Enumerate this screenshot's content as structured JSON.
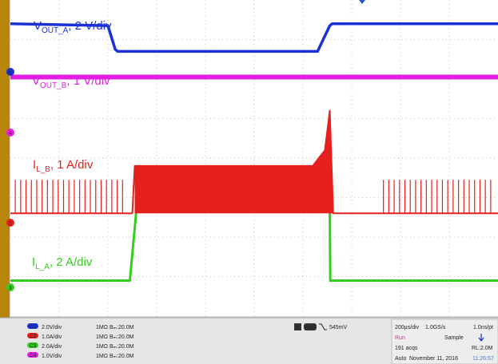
{
  "colors": {
    "ch1": "#1a31d6",
    "ch2": "#e6201f",
    "ch3": "#33cc1f",
    "ch4": "#e21ee2",
    "bezel": "#b8860b",
    "screen": "#ffffff",
    "grid": "#b0b0b0",
    "panel": "#e6e6e6",
    "run": "#cc3399"
  },
  "chart_data": {
    "type": "line",
    "x_unit": "div",
    "xlim": [
      0,
      10
    ],
    "ylim": [
      0,
      8
    ],
    "series": [
      {
        "name": "V_OUT_A",
        "label_base": "V",
        "label_sub": "OUT_A",
        "label_suffix": ", 2 V/div",
        "color": "#1a31d6",
        "x": [
          0,
          2.0,
          2.15,
          2.2,
          6.3,
          6.55,
          6.6,
          10
        ],
        "y": [
          7.4,
          7.35,
          6.75,
          6.7,
          6.7,
          7.35,
          7.4,
          7.4
        ]
      },
      {
        "name": "V_OUT_B",
        "label_base": "V",
        "label_sub": "OUT_B",
        "label_suffix": ", 1 V/div",
        "color": "#e21ee2",
        "x": [
          0,
          10
        ],
        "y": [
          6.05,
          6.05
        ]
      },
      {
        "name": "I_L_B",
        "label_base": "I",
        "label_sub": "L_B",
        "label_suffix": ", 1 A/div",
        "color": "#e6201f",
        "x": [
          0,
          2.5,
          2.55,
          6.2,
          6.45,
          6.55,
          6.62,
          7.7,
          10
        ],
        "y": [
          2.6,
          2.6,
          3.8,
          3.8,
          4.2,
          5.2,
          2.6,
          2.6,
          2.6
        ],
        "pulse_regions_div": [
          [
            0.1,
            2.4
          ],
          [
            7.65,
            9.9
          ]
        ],
        "pulse_height_div": 0.85
      },
      {
        "name": "I_L_A",
        "label_base": "I",
        "label_sub": "L_A",
        "label_suffix": ", 2 A/div",
        "color": "#33cc1f",
        "x": [
          0,
          2.45,
          2.6,
          6.55,
          6.56,
          10
        ],
        "y": [
          0.9,
          0.9,
          2.9,
          2.9,
          0.9,
          0.9
        ]
      }
    ]
  },
  "markers": {
    "ch1": "1",
    "ch4": "4",
    "ch2": "2",
    "ch3": "3"
  },
  "panel": {
    "channels": [
      {
        "id": "C1",
        "scale": "2.0V/div",
        "imp": "1MΩ",
        "bw": "Bₘ:20.0M"
      },
      {
        "id": "C2",
        "scale": "1.0A/div",
        "imp": "1MΩ",
        "bw": "Bₘ:20.0M"
      },
      {
        "id": "C3",
        "scale": "2.0A/div",
        "imp": "1MΩ",
        "bw": "Bₘ:20.0M"
      },
      {
        "id": "C4",
        "scale": "1.0V/div",
        "imp": "1MΩ",
        "bw": "Bₘ:20.0M"
      }
    ],
    "trigger": {
      "badge": "A",
      "source": "Aux",
      "level": "545mV"
    },
    "timebase": {
      "horiz": "200µs/div",
      "rate": "1.0GS/s",
      "res": "1.0ns/pt",
      "run": "Run",
      "mode": "Sample",
      "acqs": "191 acqs",
      "rl": "RL:2.0M",
      "auto": "Auto",
      "date": "November 11, 2016",
      "time": "11:26:57"
    }
  }
}
